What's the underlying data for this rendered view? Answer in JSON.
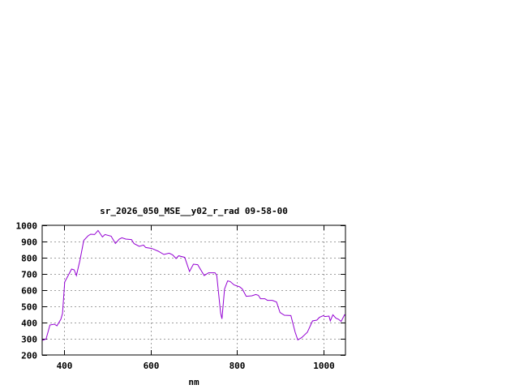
{
  "chart_data": {
    "type": "line",
    "title": "sr_2026_050_MSE__y02_r_rad 09-58-00",
    "xlabel": "nm",
    "ylabel": "",
    "xlim": [
      350,
      1050
    ],
    "ylim": [
      200,
      1000
    ],
    "x_ticks": [
      400,
      600,
      800,
      1000
    ],
    "y_ticks": [
      200,
      300,
      400,
      500,
      600,
      700,
      800,
      900,
      1000
    ],
    "grid": true,
    "line_color": "#9400d3",
    "series": [
      {
        "x": [
          350,
          359,
          368,
          378,
          384,
          393,
          397,
          402,
          412,
          418,
          424,
          429,
          437,
          446,
          456,
          462,
          471,
          479,
          489,
          495,
          509,
          519,
          528,
          534,
          543,
          556,
          562,
          574,
          584,
          589,
          603,
          618,
          631,
          643,
          651,
          659,
          665,
          679,
          690,
          699,
          709,
          724,
          734,
          749,
          753,
          762,
          765,
          771,
          778,
          784,
          793,
          806,
          812,
          821,
          834,
          843,
          849,
          854,
          864,
          870,
          881,
          891,
          899,
          909,
          924,
          934,
          940,
          949,
          962,
          974,
          984,
          990,
          999,
          1002,
          1012,
          1015,
          1021,
          1028,
          1034,
          1040,
          1048,
          1050
        ],
        "y": [
          290,
          298,
          385,
          390,
          380,
          420,
          456,
          650,
          700,
          730,
          725,
          690,
          782,
          907,
          935,
          945,
          943,
          968,
          928,
          943,
          933,
          888,
          915,
          923,
          915,
          912,
          887,
          870,
          878,
          863,
          857,
          840,
          820,
          828,
          818,
          795,
          812,
          802,
          715,
          760,
          757,
          690,
          707,
          707,
          690,
          457,
          423,
          607,
          657,
          653,
          632,
          620,
          607,
          562,
          565,
          573,
          568,
          547,
          547,
          537,
          537,
          527,
          462,
          445,
          443,
          340,
          293,
          307,
          340,
          410,
          415,
          432,
          443,
          437,
          440,
          410,
          448,
          427,
          420,
          407,
          448,
          443
        ]
      }
    ]
  }
}
